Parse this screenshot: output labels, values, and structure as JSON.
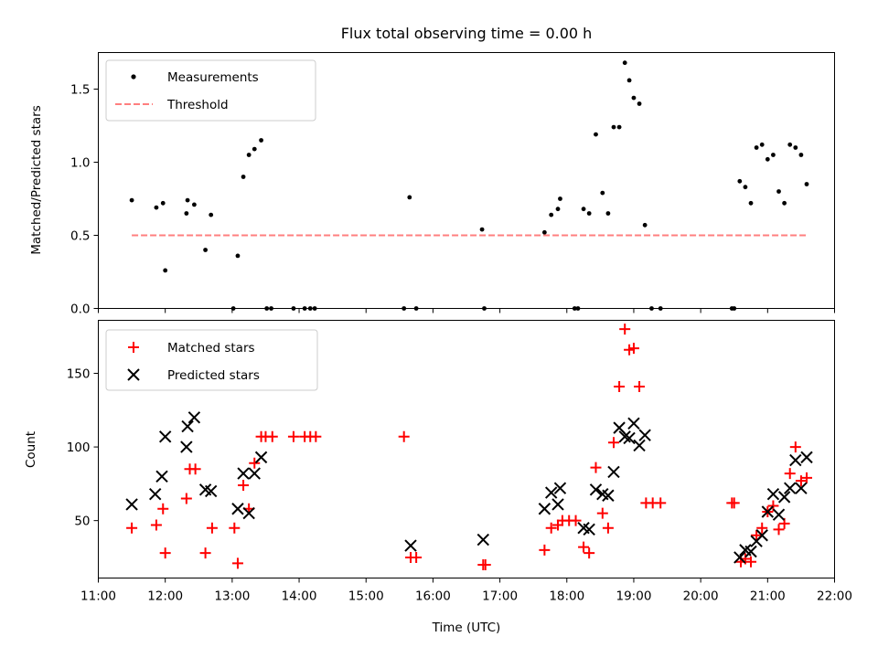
{
  "chart_data": [
    {
      "type": "scatter",
      "title": "Flux total observing time = 0.00 h",
      "xlabel": "",
      "ylabel": "Matched/Predicted stars",
      "xlim": [
        "11:00",
        "22:00"
      ],
      "ylim": [
        0,
        1.75
      ],
      "yticks": [
        0.0,
        0.5,
        1.0,
        1.5
      ],
      "ytick_labels": [
        "0.0",
        "0.5",
        "1.0",
        "1.5"
      ],
      "legend_position": "upper-left",
      "series": [
        {
          "name": "Measurements",
          "kind": "scatter",
          "marker": "dot",
          "color": "#000000",
          "points": [
            [
              "11:30",
              0.74
            ],
            [
              "11:52",
              0.69
            ],
            [
              "11:58",
              0.72
            ],
            [
              "12:00",
              0.26
            ],
            [
              "12:19",
              0.65
            ],
            [
              "12:20",
              0.74
            ],
            [
              "12:26",
              0.71
            ],
            [
              "12:36",
              0.4
            ],
            [
              "12:41",
              0.64
            ],
            [
              "13:01",
              0.0
            ],
            [
              "13:05",
              0.36
            ],
            [
              "13:10",
              0.9
            ],
            [
              "13:15",
              1.05
            ],
            [
              "13:20",
              1.09
            ],
            [
              "13:26",
              1.15
            ],
            [
              "13:31",
              0.0
            ],
            [
              "13:35",
              0.0
            ],
            [
              "13:55",
              0.0
            ],
            [
              "14:05",
              0.0
            ],
            [
              "14:10",
              0.0
            ],
            [
              "14:14",
              0.0
            ],
            [
              "15:34",
              0.0
            ],
            [
              "15:39",
              0.76
            ],
            [
              "15:45",
              0.0
            ],
            [
              "16:44",
              0.54
            ],
            [
              "16:46",
              0.0
            ],
            [
              "17:40",
              0.52
            ],
            [
              "17:46",
              0.64
            ],
            [
              "17:52",
              0.68
            ],
            [
              "17:54",
              0.75
            ],
            [
              "18:07",
              0.0
            ],
            [
              "18:10",
              0.0
            ],
            [
              "18:15",
              0.68
            ],
            [
              "18:20",
              0.65
            ],
            [
              "18:26",
              1.19
            ],
            [
              "18:32",
              0.79
            ],
            [
              "18:37",
              0.65
            ],
            [
              "18:42",
              1.24
            ],
            [
              "18:47",
              1.24
            ],
            [
              "18:52",
              1.68
            ],
            [
              "18:56",
              1.56
            ],
            [
              "19:00",
              1.44
            ],
            [
              "19:05",
              1.4
            ],
            [
              "19:10",
              0.57
            ],
            [
              "19:16",
              0.0
            ],
            [
              "19:24",
              0.0
            ],
            [
              "20:28",
              0.0
            ],
            [
              "20:30",
              0.0
            ],
            [
              "20:35",
              0.87
            ],
            [
              "20:40",
              0.83
            ],
            [
              "20:45",
              0.72
            ],
            [
              "20:50",
              1.1
            ],
            [
              "20:55",
              1.12
            ],
            [
              "21:00",
              1.02
            ],
            [
              "21:05",
              1.05
            ],
            [
              "21:10",
              0.8
            ],
            [
              "21:15",
              0.72
            ],
            [
              "21:20",
              1.12
            ],
            [
              "21:25",
              1.1
            ],
            [
              "21:30",
              1.05
            ],
            [
              "21:35",
              0.85
            ]
          ]
        },
        {
          "name": "Threshold",
          "kind": "line",
          "style": "dashed",
          "color": "#ff7f7f",
          "points": [
            [
              "11:30",
              0.5
            ],
            [
              "21:35",
              0.5
            ]
          ]
        }
      ]
    },
    {
      "type": "scatter",
      "title": "",
      "xlabel": "Time (UTC)",
      "ylabel": "Count",
      "xlim": [
        "11:00",
        "22:00"
      ],
      "ylim": [
        11,
        186
      ],
      "yticks": [
        50,
        100,
        150
      ],
      "ytick_labels": [
        "50",
        "100",
        "150"
      ],
      "xticks": [
        "11:00",
        "12:00",
        "13:00",
        "14:00",
        "15:00",
        "16:00",
        "17:00",
        "18:00",
        "19:00",
        "20:00",
        "21:00",
        "22:00"
      ],
      "legend_position": "upper-left",
      "series": [
        {
          "name": "Matched stars",
          "kind": "scatter",
          "marker": "plus",
          "color": "#ff0000",
          "points": [
            [
              "11:30",
              45
            ],
            [
              "11:52",
              47
            ],
            [
              "11:58",
              58
            ],
            [
              "12:00",
              28
            ],
            [
              "12:19",
              65
            ],
            [
              "12:22",
              85
            ],
            [
              "12:27",
              85
            ],
            [
              "12:36",
              28
            ],
            [
              "12:42",
              45
            ],
            [
              "13:02",
              45
            ],
            [
              "13:05",
              21
            ],
            [
              "13:10",
              74
            ],
            [
              "13:15",
              58
            ],
            [
              "13:20",
              89
            ],
            [
              "13:26",
              107
            ],
            [
              "13:30",
              107
            ],
            [
              "13:36",
              107
            ],
            [
              "13:55",
              107
            ],
            [
              "14:05",
              107
            ],
            [
              "14:10",
              107
            ],
            [
              "14:15",
              107
            ],
            [
              "15:34",
              107
            ],
            [
              "15:40",
              25
            ],
            [
              "15:45",
              25
            ],
            [
              "16:45",
              20
            ],
            [
              "16:47",
              20
            ],
            [
              "17:40",
              30
            ],
            [
              "17:46",
              45
            ],
            [
              "17:52",
              47
            ],
            [
              "17:56",
              50
            ],
            [
              "18:02",
              50
            ],
            [
              "18:08",
              50
            ],
            [
              "18:15",
              32
            ],
            [
              "18:20",
              28
            ],
            [
              "18:26",
              86
            ],
            [
              "18:32",
              55
            ],
            [
              "18:37",
              45
            ],
            [
              "18:42",
              103
            ],
            [
              "18:47",
              141
            ],
            [
              "18:52",
              180
            ],
            [
              "18:56",
              166
            ],
            [
              "19:00",
              167
            ],
            [
              "19:05",
              141
            ],
            [
              "19:11",
              62
            ],
            [
              "19:17",
              62
            ],
            [
              "19:24",
              62
            ],
            [
              "20:28",
              62
            ],
            [
              "20:30",
              62
            ],
            [
              "20:36",
              22
            ],
            [
              "20:40",
              24
            ],
            [
              "20:45",
              22
            ],
            [
              "20:50",
              40
            ],
            [
              "20:55",
              45
            ],
            [
              "21:00",
              56
            ],
            [
              "21:05",
              60
            ],
            [
              "21:10",
              44
            ],
            [
              "21:15",
              48
            ],
            [
              "21:20",
              82
            ],
            [
              "21:25",
              100
            ],
            [
              "21:30",
              77
            ],
            [
              "21:35",
              79
            ]
          ]
        },
        {
          "name": "Predicted stars",
          "kind": "scatter",
          "marker": "x",
          "color": "#000000",
          "points": [
            [
              "11:30",
              61
            ],
            [
              "11:51",
              68
            ],
            [
              "11:57",
              80
            ],
            [
              "12:00",
              107
            ],
            [
              "12:19",
              100
            ],
            [
              "12:20",
              114
            ],
            [
              "12:26",
              120
            ],
            [
              "12:36",
              71
            ],
            [
              "12:41",
              70
            ],
            [
              "13:05",
              58
            ],
            [
              "13:10",
              82
            ],
            [
              "13:15",
              55
            ],
            [
              "13:20",
              82
            ],
            [
              "13:26",
              93
            ],
            [
              "15:40",
              33
            ],
            [
              "16:45",
              37
            ],
            [
              "17:40",
              58
            ],
            [
              "17:46",
              69
            ],
            [
              "17:52",
              61
            ],
            [
              "17:54",
              72
            ],
            [
              "18:15",
              45
            ],
            [
              "18:20",
              44
            ],
            [
              "18:26",
              71
            ],
            [
              "18:32",
              68
            ],
            [
              "18:37",
              67
            ],
            [
              "18:42",
              83
            ],
            [
              "18:47",
              113
            ],
            [
              "18:52",
              107
            ],
            [
              "18:56",
              106
            ],
            [
              "19:00",
              116
            ],
            [
              "19:05",
              101
            ],
            [
              "19:10",
              108
            ],
            [
              "20:35",
              25
            ],
            [
              "20:40",
              30
            ],
            [
              "20:45",
              29
            ],
            [
              "20:50",
              36
            ],
            [
              "20:55",
              40
            ],
            [
              "21:00",
              56
            ],
            [
              "21:05",
              68
            ],
            [
              "21:10",
              54
            ],
            [
              "21:15",
              66
            ],
            [
              "21:20",
              72
            ],
            [
              "21:25",
              91
            ],
            [
              "21:30",
              72
            ],
            [
              "21:35",
              93
            ]
          ]
        }
      ]
    }
  ]
}
